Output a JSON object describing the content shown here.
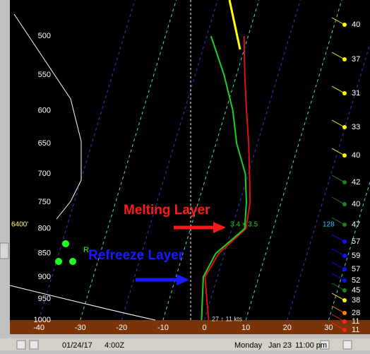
{
  "chart_data": {
    "type": "skewt",
    "pressure_levels": [
      1000,
      900,
      850,
      800,
      750,
      700,
      650,
      600,
      550,
      500
    ],
    "series": [
      {
        "color": "#e01010",
        "values": [
          1,
          -3,
          -1.4,
          3.4,
          2.5,
          0.3,
          -2.1,
          -5,
          -8,
          -11
        ]
      },
      {
        "color": "#20d020",
        "values": [
          -0.7,
          -3.4,
          -2.1,
          3.1,
          1.6,
          -0.7,
          -5,
          -8.3,
          -13,
          -19
        ]
      }
    ],
    "xlim": [
      -47,
      40
    ],
    "xticks": [
      -40,
      -30,
      -20,
      -10,
      0,
      10,
      20,
      30
    ],
    "ylim": [
      1000,
      458
    ],
    "yticks": [
      500,
      550,
      600,
      650,
      700,
      750,
      800,
      850,
      900,
      950,
      1000
    ],
    "log_scale": true,
    "annotations": {
      "melting": "Melting Layer",
      "refreeze": "Refreeze Layer",
      "surface_values": "3.4 × 3.5",
      "height": "6400'",
      "right_value": "128",
      "r_mark": "R",
      "wind": "27 ↑ 11 kts"
    },
    "wind_speeds": [
      {
        "value": 40,
        "color": "#ffff00"
      },
      {
        "value": 37,
        "color": "#ffff00"
      },
      {
        "value": 31,
        "color": "#ffff00"
      },
      {
        "value": 33,
        "color": "#ffff00"
      },
      {
        "value": 40,
        "color": "#ffff00"
      },
      {
        "value": 42,
        "color": "#208020"
      },
      {
        "value": 40,
        "color": "#208020"
      },
      {
        "value": 47,
        "color": "#208020"
      },
      {
        "value": 57,
        "color": "#1010ff"
      },
      {
        "value": 59,
        "color": "#1010ff"
      },
      {
        "value": 57,
        "color": "#1010ff"
      },
      {
        "value": 52,
        "color": "#1010ff"
      },
      {
        "value": 45,
        "color": "#208020"
      },
      {
        "value": 38,
        "color": "#ffff00"
      },
      {
        "value": 28,
        "color": "#ff8000"
      },
      {
        "value": 11,
        "color": "#ff2020"
      },
      {
        "value": 11,
        "color": "#ff2020"
      }
    ],
    "status": {
      "date": "01/24/17",
      "time": "4:00Z",
      "day": "Monday",
      "local_date": "Jan 23",
      "local_time": "11:00 pm"
    }
  }
}
